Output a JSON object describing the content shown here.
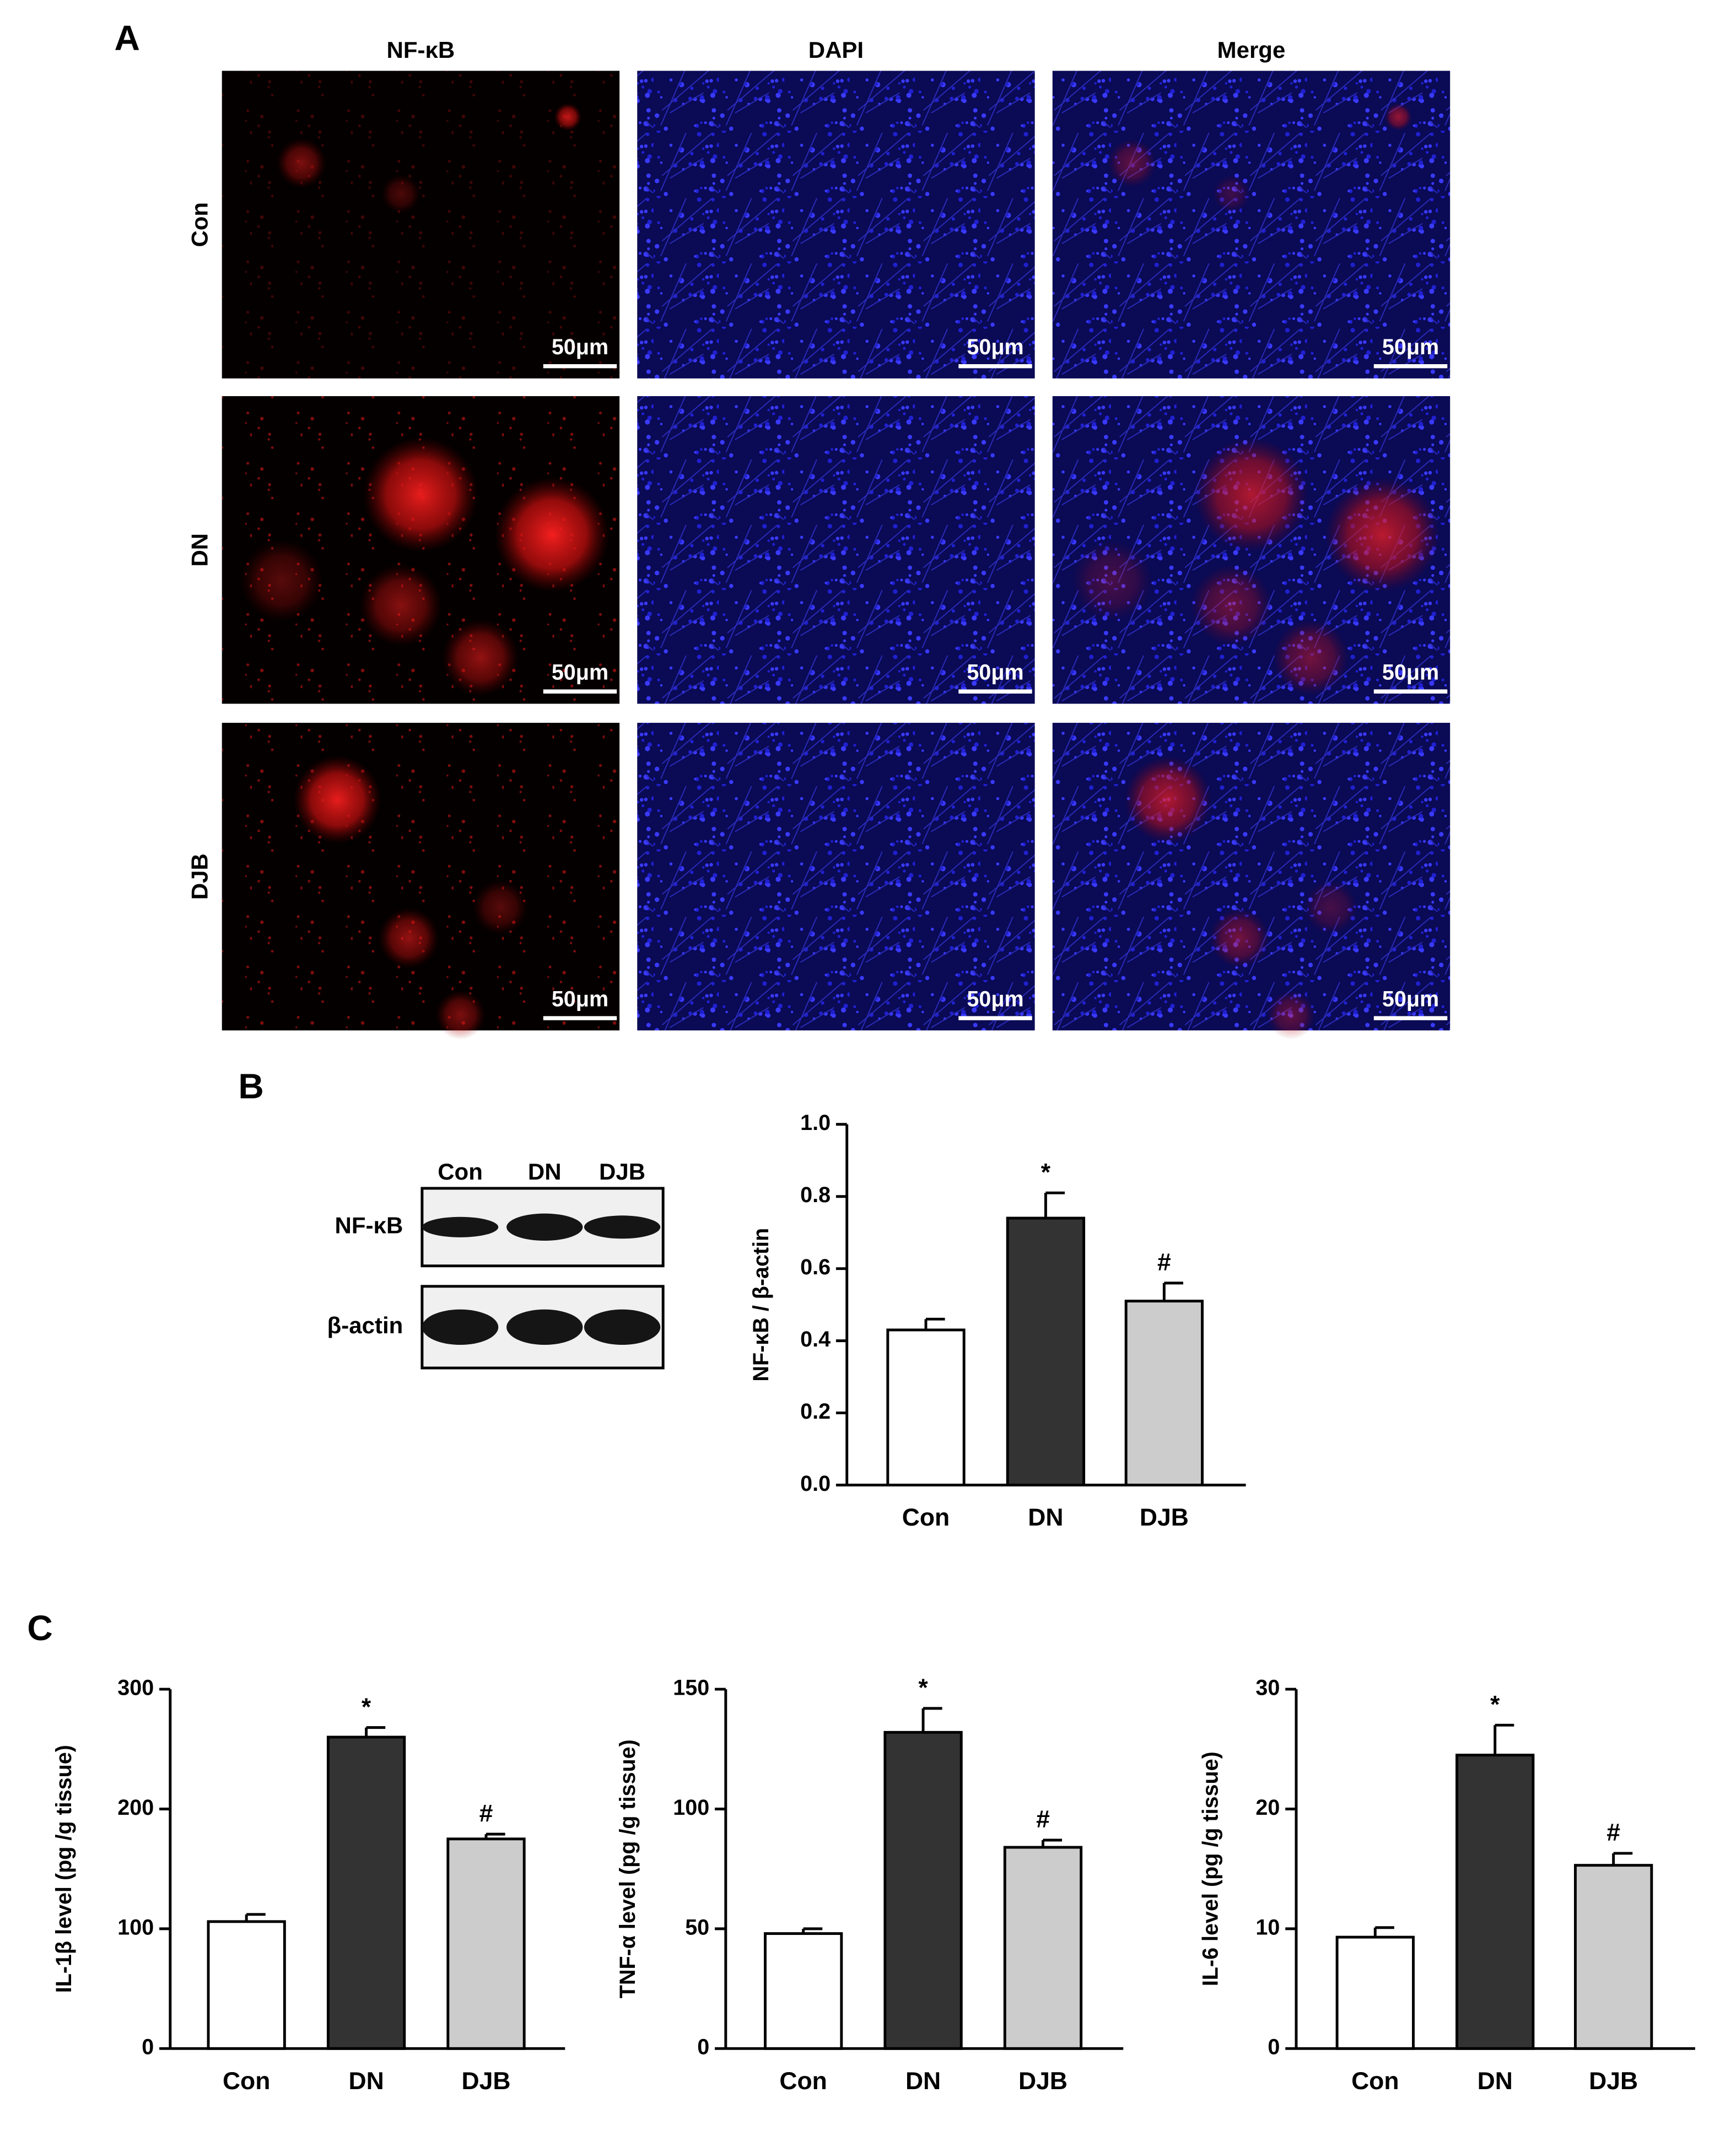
{
  "panel_labels": [
    "A",
    "B",
    "C"
  ],
  "images": {
    "columns": [
      "NF-κB",
      "DAPI",
      "Merge"
    ],
    "rows": [
      "Con",
      "DN",
      "DJB"
    ],
    "scale_bar": "50μm"
  },
  "blot": {
    "lanes": [
      "Con",
      "DN",
      "DJB"
    ],
    "bands": [
      "NF-κB",
      "β-actin"
    ]
  },
  "chart_data": [
    {
      "type": "bar",
      "ylabel": "NF-κB / β-actin",
      "categories": [
        "Con",
        "DN",
        "DJB"
      ],
      "values": [
        0.43,
        0.74,
        0.51
      ],
      "errors": [
        0.03,
        0.07,
        0.05
      ],
      "markers": [
        null,
        "*",
        "#"
      ],
      "colors": [
        "#ffffff",
        "#333333",
        "#cccccc"
      ],
      "ylim": [
        0,
        1
      ],
      "yticks": [
        {
          "value": 0,
          "label": "0.0"
        },
        0.2,
        0.4,
        0.6,
        0.8,
        {
          "value": 1,
          "label": "1.0"
        }
      ]
    },
    {
      "type": "bar",
      "ylabel": "IL-1β level (pg /g tissue)",
      "categories": [
        "Con",
        "DN",
        "DJB"
      ],
      "values": [
        106,
        260,
        175
      ],
      "errors": [
        6,
        8,
        4
      ],
      "markers": [
        null,
        "*",
        "#"
      ],
      "colors": [
        "#ffffff",
        "#333333",
        "#cccccc"
      ],
      "ylim": [
        0,
        300
      ],
      "yticks": [
        0,
        100,
        200,
        300
      ]
    },
    {
      "type": "bar",
      "ylabel": "TNF-α level (pg /g tissue)",
      "categories": [
        "Con",
        "DN",
        "DJB"
      ],
      "values": [
        48,
        132,
        84
      ],
      "errors": [
        2,
        10,
        3
      ],
      "markers": [
        null,
        "*",
        "#"
      ],
      "colors": [
        "#ffffff",
        "#333333",
        "#cccccc"
      ],
      "ylim": [
        0,
        150
      ],
      "yticks": [
        0,
        50,
        100,
        150
      ]
    },
    {
      "type": "bar",
      "ylabel": "IL-6 level (pg /g tissue)",
      "categories": [
        "Con",
        "DN",
        "DJB"
      ],
      "values": [
        9.3,
        24.5,
        15.3
      ],
      "errors": [
        0.8,
        2.5,
        1.0
      ],
      "markers": [
        null,
        "*",
        "#"
      ],
      "colors": [
        "#ffffff",
        "#333333",
        "#cccccc"
      ],
      "ylim": [
        0,
        30
      ],
      "yticks": [
        0,
        10,
        20,
        30
      ]
    }
  ]
}
